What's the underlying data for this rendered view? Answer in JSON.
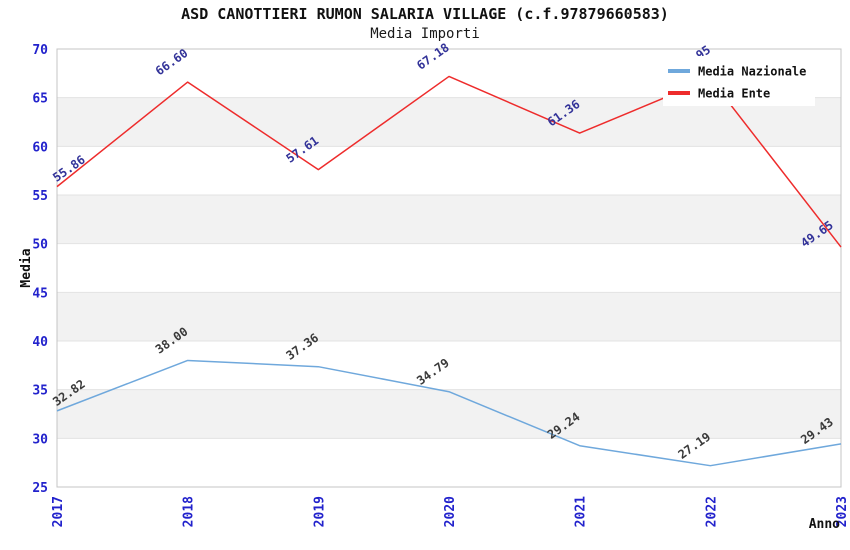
{
  "header": {
    "title": "ASD CANOTTIERI RUMON SALARIA VILLAGE (c.f.97879660583)",
    "subtitle": "Media Importi"
  },
  "chart_data": {
    "type": "line",
    "title": "ASD CANOTTIERI RUMON SALARIA VILLAGE (c.f.97879660583)",
    "subtitle": "Media Importi",
    "xlabel": "Anno",
    "ylabel": "Media",
    "x": [
      "2017",
      "2018",
      "2019",
      "2020",
      "2021",
      "2022",
      "2023"
    ],
    "ylim": [
      25,
      70
    ],
    "ytick_step": 5,
    "yticks": [
      25,
      30,
      35,
      40,
      45,
      50,
      55,
      60,
      65,
      70
    ],
    "grid": "alternating-horizontal-bands",
    "legend_position": "top-right",
    "series": [
      {
        "name": "Media Nazionale",
        "color": "#6fa8dc",
        "label_color": "#3a3a3a",
        "values": [
          32.82,
          38.0,
          37.36,
          34.79,
          29.24,
          27.19,
          29.43
        ]
      },
      {
        "name": "Media Ente",
        "color": "#ee2c2c",
        "label_color": "#333399",
        "values": [
          55.86,
          66.6,
          57.61,
          67.18,
          61.36,
          66.95,
          49.65
        ]
      }
    ]
  },
  "style": {
    "axis_tick_color": "#2222cc",
    "band_color": "#f2f2f2",
    "grid_color": "#e3e3e3",
    "frame_color": "#c4c4c4",
    "axis_title_color": "#111111",
    "data_label_rotation_deg": -35,
    "legend_bg": "#ffffff",
    "legend_text_color": "#111111"
  }
}
